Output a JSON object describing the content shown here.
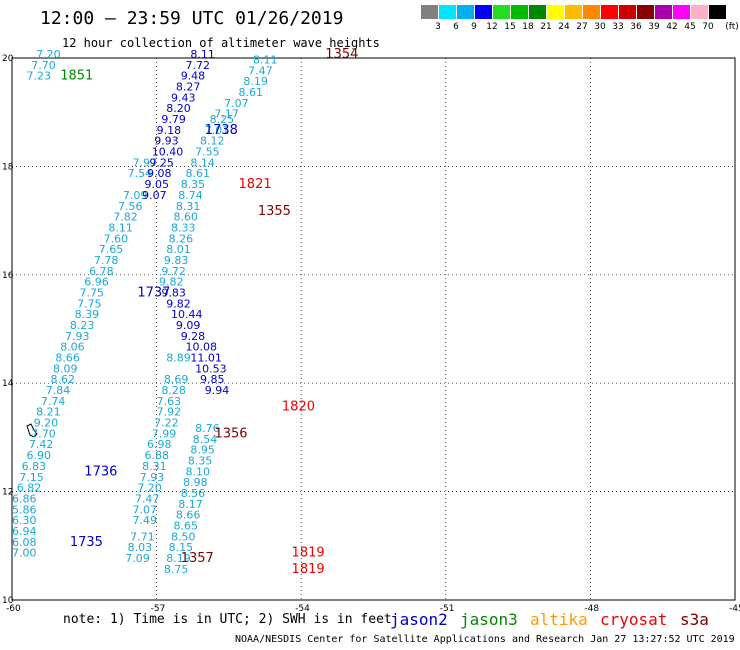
{
  "title": "12:00 – 23:59 UTC 01/26/2019",
  "subtitle": "12 hour collection of altimeter wave heights",
  "legend": {
    "unit": "(ft)",
    "swatches": [
      {
        "label": "3",
        "color": "#808080"
      },
      {
        "label": "6",
        "color": "#00e5ff"
      },
      {
        "label": "9",
        "color": "#00b0f0"
      },
      {
        "label": "12",
        "color": "#0000ff"
      },
      {
        "label": "15",
        "color": "#22dd22"
      },
      {
        "label": "18",
        "color": "#00bb00"
      },
      {
        "label": "21",
        "color": "#008800"
      },
      {
        "label": "24",
        "color": "#ffff00"
      },
      {
        "label": "27",
        "color": "#ffbb00"
      },
      {
        "label": "30",
        "color": "#ff8800"
      },
      {
        "label": "33",
        "color": "#ff0000"
      },
      {
        "label": "36",
        "color": "#cc0000"
      },
      {
        "label": "39",
        "color": "#880000"
      },
      {
        "label": "42",
        "color": "#aa00aa"
      },
      {
        "label": "45",
        "color": "#ff00ff"
      },
      {
        "label": "70",
        "color": "#ffb0c8"
      },
      {
        "label": "",
        "color": "#000000"
      }
    ]
  },
  "map": {
    "lat_range": [
      10,
      20
    ],
    "lon_range": [
      -60,
      -45
    ],
    "lat_ticks": [
      "10",
      "12",
      "14",
      "16",
      "18",
      "20"
    ],
    "lon_ticks": [
      "-60",
      "-57",
      "-54",
      "-51",
      "-48",
      "-45"
    ]
  },
  "colors": {
    "lightblue": "#1aa8d6",
    "blue": "#0000c8",
    "green": "#008800",
    "orange": "#ff9900",
    "red": "#ee0000",
    "maroon": "#800000"
  },
  "passes": [
    {
      "color": "lightblue",
      "points": [
        [
          20.0,
          -59.5,
          "7.20"
        ],
        [
          19.8,
          -59.6,
          "7.70"
        ],
        [
          19.6,
          -59.7,
          "7.23"
        ],
        [
          18.0,
          -57.5,
          "7.97"
        ],
        [
          17.8,
          -57.6,
          "7.54"
        ],
        [
          17.4,
          -57.7,
          "7.09"
        ],
        [
          17.2,
          -57.8,
          "7.56"
        ],
        [
          17.0,
          -57.9,
          "7.82"
        ],
        [
          16.8,
          -58.0,
          "8.11"
        ],
        [
          16.6,
          -58.1,
          "7.60"
        ],
        [
          16.4,
          -58.2,
          "7.65"
        ],
        [
          16.2,
          -58.3,
          "7.78"
        ],
        [
          16.0,
          -58.4,
          "6.78"
        ],
        [
          15.8,
          -58.5,
          "6.96"
        ],
        [
          15.6,
          -58.6,
          "7.75"
        ],
        [
          15.4,
          -58.65,
          "7.75"
        ],
        [
          15.2,
          -58.7,
          "8.39"
        ],
        [
          15.0,
          -58.8,
          "8.23"
        ],
        [
          14.8,
          -58.9,
          "7.93"
        ],
        [
          14.6,
          -59.0,
          "8.06"
        ],
        [
          14.4,
          -59.1,
          "8.66"
        ],
        [
          14.2,
          -59.15,
          "8.09"
        ],
        [
          14.0,
          -59.2,
          "8.62"
        ],
        [
          13.8,
          -59.3,
          "7.84"
        ],
        [
          13.6,
          -59.4,
          "7.74"
        ],
        [
          13.4,
          -59.5,
          "8.21"
        ],
        [
          13.2,
          -59.55,
          "9.20"
        ],
        [
          13.0,
          -59.6,
          "7.70"
        ],
        [
          12.8,
          -59.65,
          "7.42"
        ],
        [
          12.6,
          -59.7,
          "6.90"
        ],
        [
          12.4,
          -59.8,
          "6.83"
        ],
        [
          12.2,
          -59.85,
          "7.15"
        ],
        [
          12.0,
          -59.9,
          "6.82"
        ],
        [
          11.8,
          -60.0,
          "6.86"
        ],
        [
          11.6,
          -60.0,
          "5.86"
        ],
        [
          11.4,
          -60.0,
          "6.30"
        ],
        [
          11.2,
          -60.0,
          "6.94"
        ],
        [
          11.0,
          -60.0,
          "6.08"
        ],
        [
          10.8,
          -60.0,
          "7.00"
        ]
      ]
    },
    {
      "color": "lightblue",
      "points": [
        [
          14.4,
          -56.8,
          "8.89"
        ],
        [
          14.0,
          -56.85,
          "8.69"
        ],
        [
          13.8,
          -56.9,
          "8.28"
        ],
        [
          13.6,
          -57.0,
          "7.63"
        ],
        [
          13.4,
          -57.0,
          "7.92"
        ],
        [
          13.2,
          -57.05,
          "7.22"
        ],
        [
          13.0,
          -57.1,
          "7.99"
        ],
        [
          12.8,
          -57.2,
          "6.98"
        ],
        [
          12.6,
          -57.25,
          "6.88"
        ],
        [
          12.4,
          -57.3,
          "8.31"
        ],
        [
          12.2,
          -57.35,
          "7.93"
        ],
        [
          12.0,
          -57.4,
          "7.20"
        ],
        [
          11.8,
          -57.45,
          "7.47"
        ],
        [
          11.6,
          -57.5,
          "7.07"
        ],
        [
          11.4,
          -57.5,
          "7.49"
        ],
        [
          11.1,
          -57.55,
          "7.71"
        ],
        [
          10.9,
          -57.6,
          "8.03"
        ],
        [
          10.7,
          -57.65,
          "7.09"
        ]
      ]
    },
    {
      "color": "lightblue",
      "points": [
        [
          19.1,
          -55.6,
          "7.07"
        ],
        [
          18.9,
          -55.8,
          "7.17"
        ],
        [
          18.8,
          -55.9,
          "8.25"
        ],
        [
          18.6,
          -56.0,
          "7.01"
        ],
        [
          18.4,
          -56.1,
          "8.12"
        ],
        [
          18.2,
          -56.2,
          "7.55"
        ],
        [
          18.0,
          -56.3,
          "8.14"
        ],
        [
          17.8,
          -56.4,
          "8.61"
        ],
        [
          17.6,
          -56.5,
          "8.35"
        ],
        [
          17.4,
          -56.55,
          "8.74"
        ],
        [
          17.2,
          -56.6,
          "8.31"
        ],
        [
          17.0,
          -56.65,
          "8.60"
        ],
        [
          16.8,
          -56.7,
          "8.33"
        ],
        [
          16.6,
          -56.75,
          "8.26"
        ],
        [
          16.4,
          -56.8,
          "8.01"
        ],
        [
          16.2,
          -56.85,
          "9.83"
        ],
        [
          16.0,
          -56.9,
          "9.72"
        ],
        [
          15.8,
          -56.95,
          "9.82"
        ]
      ]
    },
    {
      "color": "lightblue",
      "points": [
        [
          19.9,
          -55.0,
          "8.11"
        ],
        [
          19.7,
          -55.1,
          "7.47"
        ],
        [
          19.5,
          -55.2,
          "8.19"
        ],
        [
          19.3,
          -55.3,
          "8.61"
        ],
        [
          13.1,
          -56.2,
          "8.76"
        ],
        [
          12.9,
          -56.25,
          "8.54"
        ],
        [
          12.7,
          -56.3,
          "8.95"
        ],
        [
          12.5,
          -56.35,
          "8.35"
        ],
        [
          12.3,
          -56.4,
          "8.10"
        ],
        [
          12.1,
          -56.45,
          "8.98"
        ],
        [
          11.9,
          -56.5,
          "8.56"
        ],
        [
          11.7,
          -56.55,
          "8.17"
        ],
        [
          11.5,
          -56.6,
          "8.66"
        ],
        [
          11.3,
          -56.65,
          "8.65"
        ],
        [
          11.1,
          -56.7,
          "8.50"
        ],
        [
          10.9,
          -56.75,
          "8.15"
        ],
        [
          10.7,
          -56.8,
          "8.19"
        ],
        [
          10.5,
          -56.85,
          "8.75"
        ]
      ]
    },
    {
      "color": "blue",
      "points": [
        [
          20.0,
          -56.3,
          "8.11"
        ],
        [
          19.8,
          -56.4,
          "7.72"
        ],
        [
          19.6,
          -56.5,
          "9.48"
        ],
        [
          19.4,
          -56.6,
          "8.27"
        ],
        [
          19.2,
          -56.7,
          "9.43"
        ],
        [
          19.0,
          -56.8,
          "8.20"
        ],
        [
          18.8,
          -56.9,
          "9.79"
        ],
        [
          18.6,
          -57.0,
          "9.18"
        ],
        [
          18.4,
          -57.05,
          "9.93"
        ],
        [
          18.2,
          -57.1,
          "10.40"
        ],
        [
          18.0,
          -57.15,
          "9.25"
        ],
        [
          17.8,
          -57.2,
          "9.08"
        ],
        [
          17.6,
          -57.25,
          "9.05"
        ],
        [
          17.4,
          -57.3,
          "9.07"
        ],
        [
          15.6,
          -56.9,
          "9.83"
        ],
        [
          15.4,
          -56.8,
          "9.82"
        ],
        [
          15.2,
          -56.7,
          "10.44"
        ],
        [
          15.0,
          -56.6,
          "9.09"
        ],
        [
          14.8,
          -56.5,
          "9.28"
        ],
        [
          14.6,
          -56.4,
          "10.08"
        ],
        [
          14.4,
          -56.3,
          "11.01"
        ],
        [
          14.2,
          -56.2,
          "10.53"
        ],
        [
          14.0,
          -56.1,
          "9.85"
        ],
        [
          13.8,
          -56.0,
          "9.94"
        ]
      ]
    }
  ],
  "time_labels": [
    {
      "lat": 19.6,
      "lon": -59.0,
      "text": "1851",
      "color": "green"
    },
    {
      "lat": 18.6,
      "lon": -56.0,
      "text": "1738",
      "color": "blue"
    },
    {
      "lat": 15.6,
      "lon": -57.4,
      "text": "1737",
      "color": "blue"
    },
    {
      "lat": 12.3,
      "lon": -58.5,
      "text": "1736",
      "color": "blue"
    },
    {
      "lat": 11.0,
      "lon": -58.8,
      "text": "1735",
      "color": "blue"
    },
    {
      "lat": 17.6,
      "lon": -55.3,
      "text": "1821",
      "color": "red"
    },
    {
      "lat": 13.5,
      "lon": -54.4,
      "text": "1820",
      "color": "red"
    },
    {
      "lat": 10.8,
      "lon": -54.2,
      "text": "1819",
      "color": "red"
    },
    {
      "lat": 10.5,
      "lon": -54.2,
      "text": "1819",
      "color": "red"
    },
    {
      "lat": 20.0,
      "lon": -53.5,
      "text": "1354",
      "color": "maroon"
    },
    {
      "lat": 17.1,
      "lon": -54.9,
      "text": "1355",
      "color": "maroon"
    },
    {
      "lat": 13.0,
      "lon": -55.8,
      "text": "1356",
      "color": "maroon"
    },
    {
      "lat": 10.7,
      "lon": -56.5,
      "text": "1357",
      "color": "maroon"
    }
  ],
  "footnote": "note: 1) Time is in UTC; 2) SWH is in feet",
  "credit": "NOAA/NESDIS Center for Satellite Applications and Research   Jan 27 13:27:52 UTC 2019",
  "satellites": [
    {
      "name": "jason2",
      "color": "blue"
    },
    {
      "name": "jason3",
      "color": "green"
    },
    {
      "name": "altika",
      "color": "orange"
    },
    {
      "name": "cryosat",
      "color": "red"
    },
    {
      "name": "s3a",
      "color": "maroon"
    }
  ]
}
